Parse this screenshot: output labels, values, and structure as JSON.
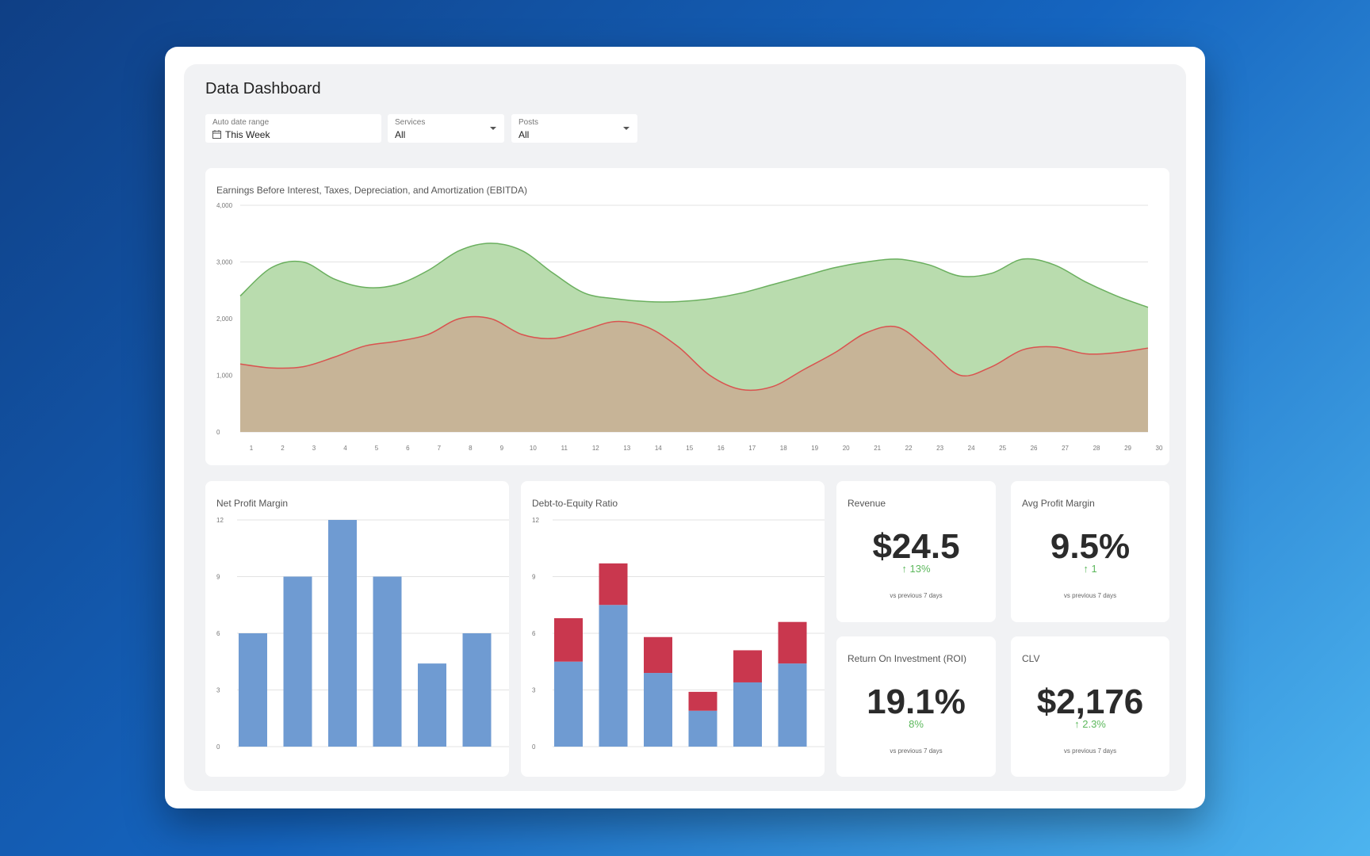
{
  "dashboard": {
    "title": "Data Dashboard",
    "filters": [
      {
        "label": "Auto date range",
        "value": "This Week"
      },
      {
        "label": "Services",
        "value": "All"
      },
      {
        "label": "Posts",
        "value": "All"
      }
    ]
  },
  "colors": {
    "green_fill": "#b9dcae",
    "green_line": "#6aaf5e",
    "tan_fill": "#c7b497",
    "red_line": "#d9534f",
    "bar_blue": "#6f9bd2",
    "bar_red": "#c9374e",
    "kpi_up": "#5cb85c"
  },
  "kpis": [
    {
      "title": "Revenue",
      "value": "$24.5",
      "change": "↑ 13%",
      "sub": "vs previous 7 days"
    },
    {
      "title": "Avg Profit Margin",
      "value": "9.5%",
      "change": "↑ 1",
      "sub": "vs previous 7 days"
    },
    {
      "title": "Return On Investment (ROI)",
      "value": "19.1%",
      "change": "8%",
      "sub": "vs previous 7 days"
    },
    {
      "title": "CLV",
      "value": "$2,176",
      "change": "↑ 2.3%",
      "sub": "vs previous 7 days"
    }
  ],
  "chart_data": [
    {
      "type": "area",
      "title": "Earnings Before Interest, Taxes, Depreciation, and Amortization (EBITDA)",
      "x": [
        1,
        2,
        3,
        4,
        5,
        6,
        7,
        8,
        9,
        10,
        11,
        12,
        13,
        14,
        15,
        16,
        17,
        18,
        19,
        20,
        21,
        22,
        23,
        24,
        25,
        26,
        27,
        28,
        29,
        30
      ],
      "ylim": [
        0,
        4000
      ],
      "yticks": [
        "0",
        "1,000",
        "2,000",
        "3,000",
        "4,000"
      ],
      "grid": true,
      "series": [
        {
          "values": [
            2400,
            2900,
            3000,
            2700,
            2550,
            2600,
            2850,
            3200,
            3330,
            3200,
            2800,
            2450,
            2350,
            2300,
            2300,
            2350,
            2450,
            2600,
            2750,
            2900,
            3000,
            3050,
            2950,
            2750,
            2800,
            3050,
            2950,
            2650,
            2400,
            2200
          ]
        },
        {
          "values": [
            1200,
            1130,
            1150,
            1320,
            1520,
            1600,
            1720,
            2000,
            2000,
            1720,
            1650,
            1800,
            1950,
            1850,
            1500,
            1000,
            750,
            800,
            1100,
            1400,
            1750,
            1850,
            1450,
            1000,
            1150,
            1450,
            1500,
            1380,
            1400,
            1480
          ]
        }
      ]
    },
    {
      "type": "bar",
      "title": "Net Profit Margin",
      "categories": [
        "",
        "",
        "",
        "",
        "",
        ""
      ],
      "values": [
        6,
        9,
        12,
        9,
        4.4,
        6
      ],
      "ylim": [
        0,
        12
      ],
      "yticks": [
        "0",
        "3",
        "6",
        "9",
        "12"
      ],
      "grid": true
    },
    {
      "type": "bar",
      "stacked": true,
      "title": "Debt-to-Equity Ratio",
      "categories": [
        "",
        "",
        "",
        "",
        "",
        ""
      ],
      "series": [
        {
          "values": [
            4.5,
            7.5,
            3.9,
            1.9,
            3.4,
            4.4
          ]
        },
        {
          "values": [
            2.3,
            2.2,
            1.9,
            1.0,
            1.7,
            2.2
          ]
        }
      ],
      "ylim": [
        0,
        12
      ],
      "yticks": [
        "0",
        "3",
        "6",
        "9",
        "12"
      ],
      "grid": true
    }
  ]
}
